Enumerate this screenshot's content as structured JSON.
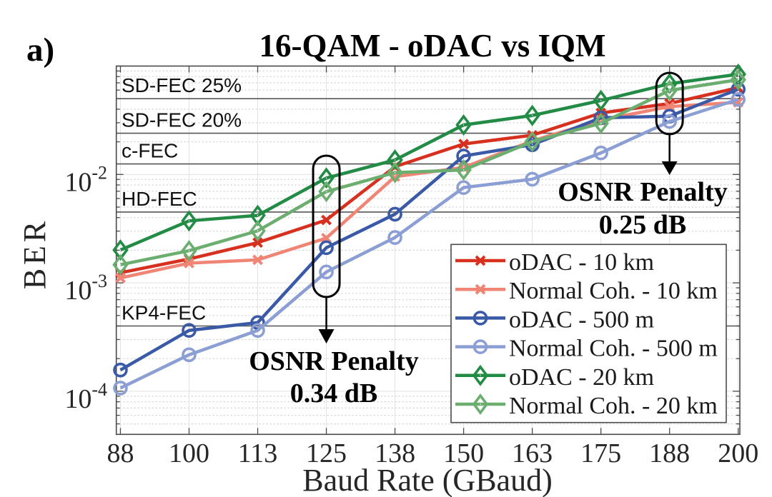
{
  "chart_data": {
    "type": "line",
    "panel_label": "a)",
    "title": "16-QAM - oDAC vs IQM",
    "xlabel": "Baud Rate (GBaud)",
    "ylabel": "BER",
    "xscale": "linear",
    "yscale": "log",
    "xlim": [
      86.75,
      200.3
    ],
    "ylim": [
      4e-05,
      0.1
    ],
    "grid": true,
    "legend_position": "bottom-right",
    "x": [
      87.5,
      100,
      112.5,
      125,
      137.5,
      150,
      162.5,
      175,
      187.5,
      200
    ],
    "xticklabels": [
      "88",
      "100",
      "113",
      "125",
      "138",
      "150",
      "163",
      "175",
      "188",
      "200"
    ],
    "yticks": [
      {
        "value": 0.0001,
        "base": "10",
        "exp": "-4"
      },
      {
        "value": 0.001,
        "base": "10",
        "exp": "-3"
      },
      {
        "value": 0.01,
        "base": "10",
        "exp": "-2"
      }
    ],
    "thresholds": [
      {
        "label": "SD-FEC 25%",
        "value": 0.05
      },
      {
        "label": "SD-FEC 20%",
        "value": 0.024
      },
      {
        "label": "c-FEC",
        "value": 0.0125
      },
      {
        "label": "HD-FEC",
        "value": 0.0045
      },
      {
        "label": "KP4-FEC",
        "value": 0.0004
      }
    ],
    "series": [
      {
        "name": "oDAC - 10 km",
        "color": "#d7301f",
        "marker": "x",
        "values": [
          0.00124,
          0.00166,
          0.00235,
          0.0038,
          0.0118,
          0.0191,
          0.023,
          0.0369,
          0.0451,
          0.0632
        ]
      },
      {
        "name": "Normal Coh. - 10 km",
        "color": "#f08475",
        "marker": "x",
        "values": [
          0.00111,
          0.00152,
          0.00163,
          0.00259,
          0.00955,
          0.0116,
          0.0204,
          0.0317,
          0.0423,
          0.0463
        ]
      },
      {
        "name": "oDAC - 500 m",
        "color": "#3a5aa8",
        "marker": "o",
        "values": [
          0.000157,
          0.000364,
          0.00043,
          0.00211,
          0.0043,
          0.0148,
          0.0188,
          0.0333,
          0.0345,
          0.0611
        ]
      },
      {
        "name": "Normal Coh. - 500 m",
        "color": "#8c9fd4",
        "marker": "o",
        "values": [
          0.000107,
          0.000217,
          0.000364,
          0.00126,
          0.00262,
          0.00757,
          0.00904,
          0.0158,
          0.0308,
          0.0492
        ]
      },
      {
        "name": "oDAC - 20 km",
        "color": "#228b45",
        "marker": "d",
        "values": [
          0.00201,
          0.00373,
          0.00419,
          0.00927,
          0.0136,
          0.0286,
          0.035,
          0.0481,
          0.0687,
          0.084
        ]
      },
      {
        "name": "Normal Coh. - 20 km",
        "color": "#6cae70",
        "marker": "d",
        "values": [
          0.00147,
          0.00198,
          0.00302,
          0.00695,
          0.0104,
          0.011,
          0.0201,
          0.0296,
          0.0596,
          0.0748
        ]
      }
    ],
    "annotations": [
      {
        "x": 125,
        "lines": [
          "OSNR Penalty",
          "0.34 dB"
        ]
      },
      {
        "x": 187.5,
        "lines": [
          "OSNR Penalty",
          "0.25 dB"
        ]
      }
    ]
  }
}
